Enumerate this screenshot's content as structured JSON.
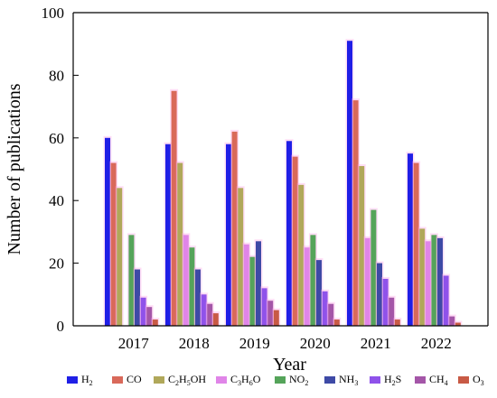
{
  "chart_data": {
    "type": "bar",
    "xlabel": "Year",
    "ylabel": "Number of publications",
    "ylim": [
      0,
      100
    ],
    "yticks": [
      "0",
      "20",
      "40",
      "60",
      "80",
      "100"
    ],
    "categories": [
      "2017",
      "2018",
      "2019",
      "2020",
      "2021",
      "2022"
    ],
    "grid": false,
    "legend_position": "bottom",
    "series": [
      {
        "name": "H",
        "sub": "2",
        "suffix": "",
        "color": "#1f1fe6",
        "values": [
          60,
          58,
          58,
          59,
          91,
          55
        ]
      },
      {
        "name": "CO",
        "sub": "",
        "suffix": "",
        "color": "#d9695a",
        "values": [
          52,
          75,
          62,
          54,
          72,
          52
        ]
      },
      {
        "name": "C",
        "sub": "2",
        "suffix": "H",
        "sub2": "5",
        "suffix2": "OH",
        "color": "#b0a85a",
        "values": [
          44,
          52,
          44,
          45,
          51,
          31
        ]
      },
      {
        "name": "C",
        "sub": "3",
        "suffix": "H",
        "sub2": "6",
        "suffix2": "O",
        "color": "#e085e8",
        "values": [
          0,
          29,
          26,
          25,
          28,
          27
        ]
      },
      {
        "name": "NO",
        "sub": "2",
        "suffix": "",
        "color": "#55a45a",
        "values": [
          29,
          25,
          22,
          29,
          37,
          29
        ]
      },
      {
        "name": "NH",
        "sub": "3",
        "suffix": "",
        "color": "#3e4aa6",
        "values": [
          18,
          18,
          27,
          21,
          20,
          28
        ]
      },
      {
        "name": "H",
        "sub": "2",
        "suffix": "S",
        "color": "#8f52ea",
        "values": [
          9,
          10,
          12,
          11,
          15,
          16
        ]
      },
      {
        "name": "CH",
        "sub": "4",
        "suffix": "",
        "color": "#a456a8",
        "values": [
          6,
          7,
          8,
          7,
          9,
          3
        ]
      },
      {
        "name": "O",
        "sub": "3",
        "suffix": "",
        "color": "#c85a45",
        "values": [
          2,
          4,
          5,
          2,
          2,
          1
        ]
      }
    ],
    "highlight_color": "#ff9ee6"
  }
}
